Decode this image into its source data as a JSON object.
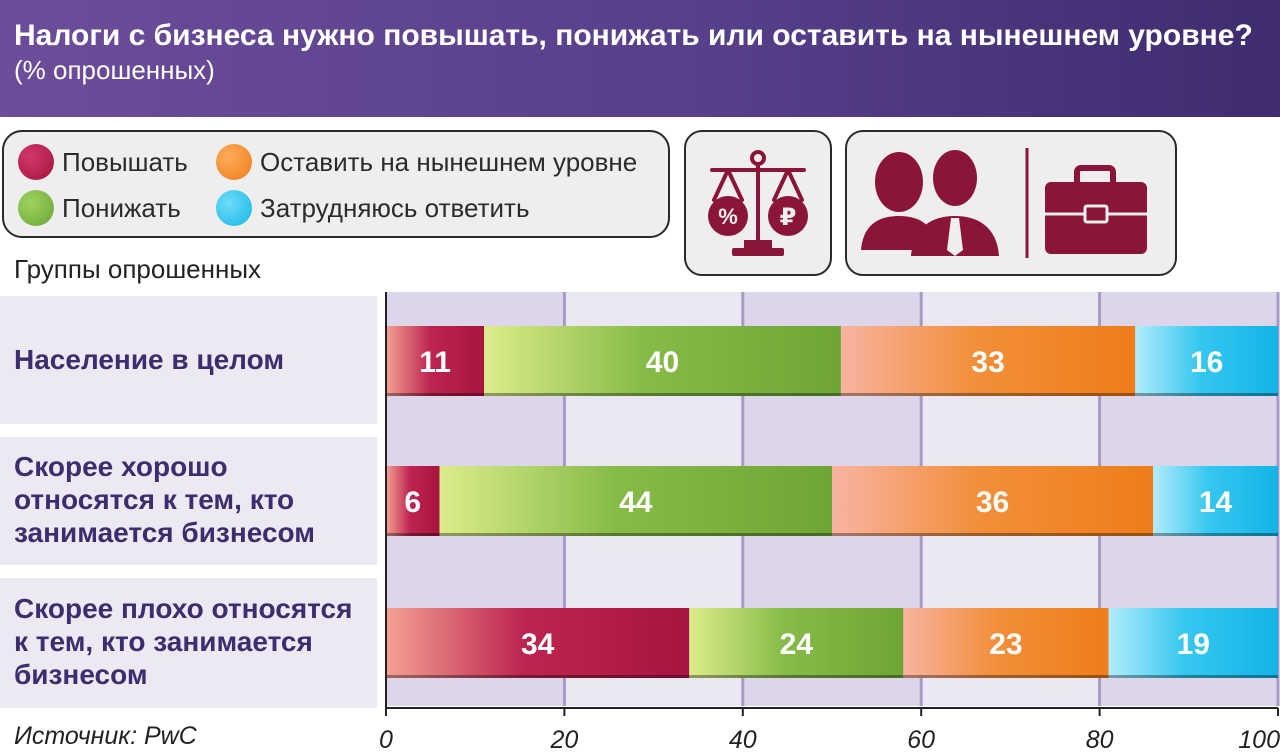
{
  "title": "Налоги с бизнеса нужно повышать, понижать или оставить на нынешнем уровне?",
  "subtitle": "(% опрошенных)",
  "groups_label": "Группы опрошенных",
  "source": "Источник: PwC",
  "icons": [
    "scales-icon",
    "people-icon",
    "briefcase-icon"
  ],
  "colors": {
    "header": "#573f8a",
    "category_text": "#3d2d6e",
    "icon": "#8a1538",
    "Повышать": "#b51a4a",
    "Понижать": "#7cb342",
    "Оставить на нынешнем уровне": "#f08a2a",
    "Затрудняюсь ответить": "#1fc0ec"
  },
  "chart_data": {
    "type": "bar",
    "orientation": "horizontal",
    "stacked": true,
    "categories": [
      "Население в целом",
      "Скорее хорошо относятся к тем, кто занимается бизнесом",
      "Скорее плохо относятся к тем, кто занимается бизнесом"
    ],
    "series": [
      {
        "name": "Повышать",
        "values": [
          11,
          6,
          34
        ]
      },
      {
        "name": "Понижать",
        "values": [
          40,
          44,
          24
        ]
      },
      {
        "name": "Оставить на нынешнем уровне",
        "values": [
          33,
          36,
          23
        ]
      },
      {
        "name": "Затрудняюсь ответить",
        "values": [
          16,
          14,
          19
        ]
      }
    ],
    "title": "Налоги с бизнеса нужно повышать, понижать или оставить на нынешнем уровне?",
    "subtitle": "(% опрошенных)",
    "xlim": [
      0,
      100
    ],
    "xticks": [
      0,
      20,
      40,
      60,
      80,
      100
    ],
    "grid": true,
    "legend": "top-left"
  }
}
